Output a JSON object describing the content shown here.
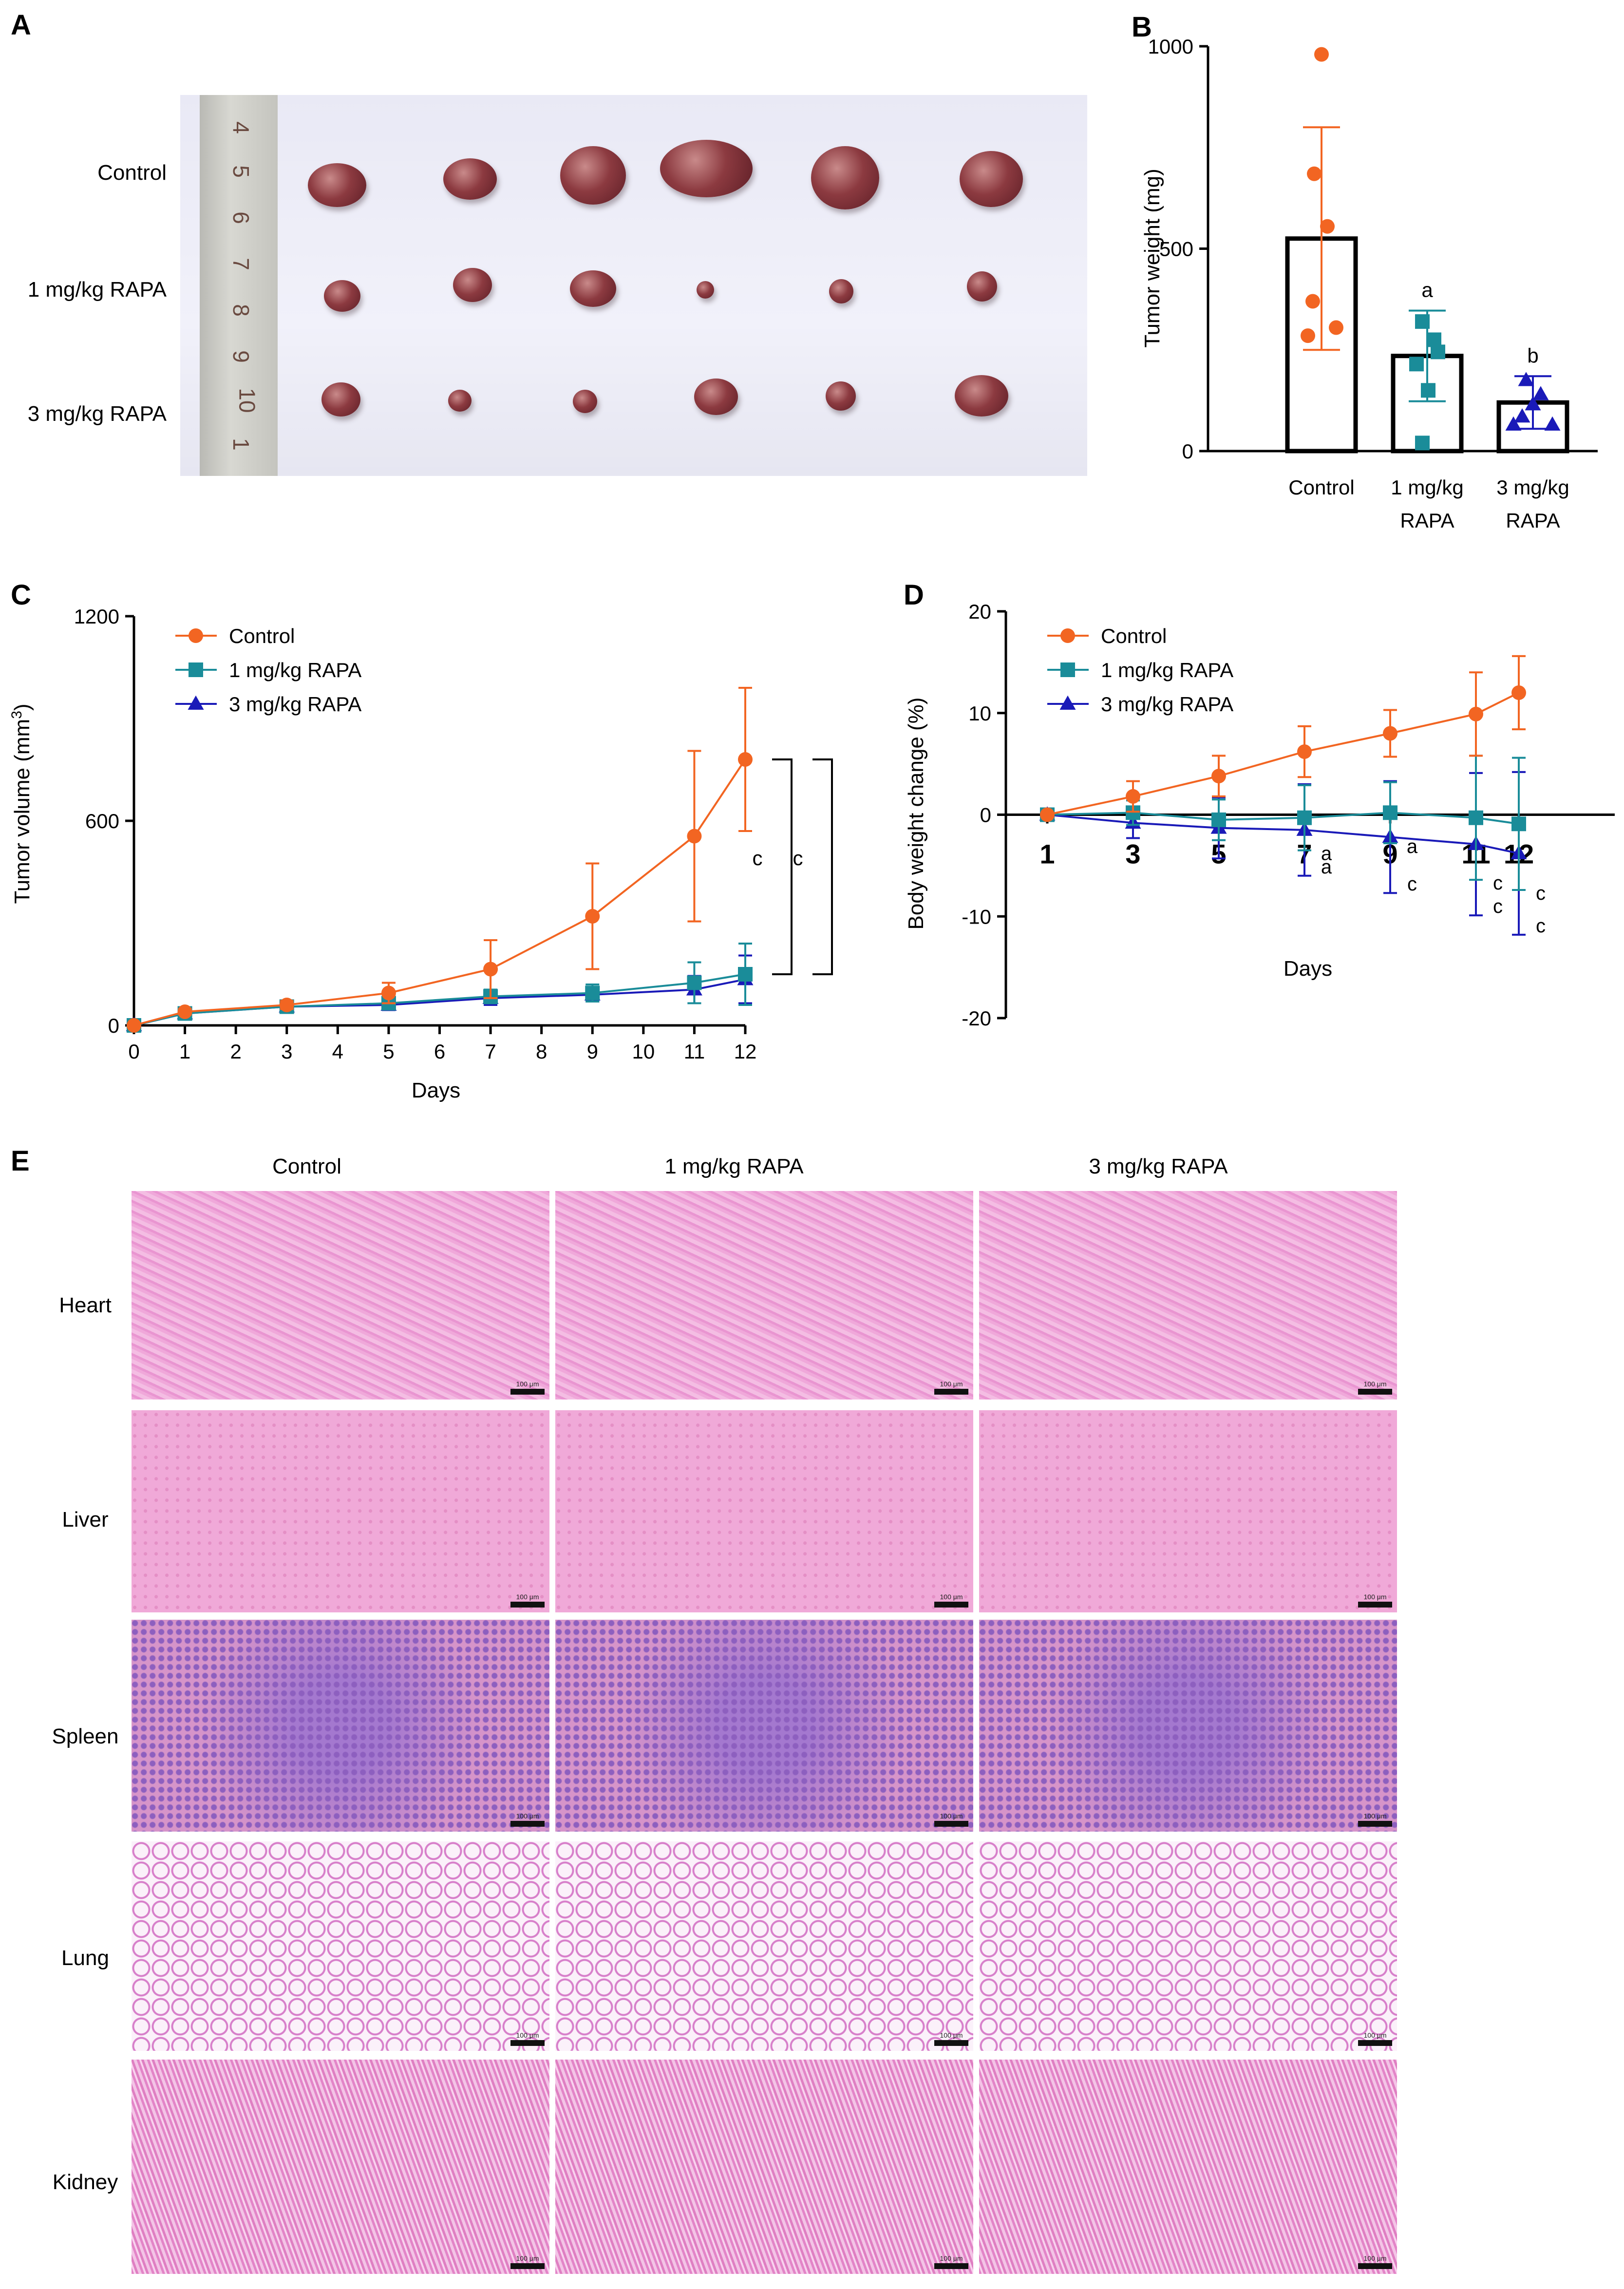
{
  "panel_letters": [
    "A",
    "B",
    "C",
    "D",
    "E"
  ],
  "panel_a": {
    "row_labels": [
      "Control",
      "1 mg/kg RAPA",
      "3 mg/kg RAPA"
    ],
    "ruler_numbers": [
      "4",
      "5",
      "6",
      "7",
      "8",
      "9",
      "10",
      "1"
    ]
  },
  "panel_e": {
    "columns": [
      "Control",
      "1 mg/kg RAPA",
      "3 mg/kg RAPA"
    ],
    "rows": [
      "Heart",
      "Liver",
      "Spleen",
      "Lung",
      "Kidney"
    ],
    "scale_bar_label": "100 μm"
  },
  "chart_data": [
    {
      "panel": "B",
      "type": "bar",
      "ylabel": "Tumor weight (mg)",
      "ylim": [
        0,
        1000
      ],
      "yticks": [
        0,
        500,
        1000
      ],
      "categories": [
        "Control",
        "1 mg/kg RAPA",
        "3 mg/kg RAPA"
      ],
      "category_lines": [
        [
          "Control"
        ],
        [
          "1 mg/kg",
          "RAPA"
        ],
        [
          "3 mg/kg",
          "RAPA"
        ]
      ],
      "values": [
        525,
        235,
        120
      ],
      "error": [
        275,
        112,
        65
      ],
      "points": [
        [
          980,
          685,
          555,
          370,
          305,
          285
        ],
        [
          320,
          275,
          245,
          215,
          150,
          20
        ],
        [
          175,
          140,
          115,
          85,
          65,
          65
        ]
      ],
      "annotations": [
        "",
        "a",
        "b"
      ],
      "colors": [
        "#f26522",
        "#1a8c99",
        "#1a1ab8"
      ],
      "markers": [
        "circle",
        "square",
        "triangle"
      ]
    },
    {
      "panel": "C",
      "type": "line",
      "xlabel": "Days",
      "ylabel": "Tumor volume (mm³)",
      "xlim": [
        0,
        12
      ],
      "ylim": [
        0,
        1200
      ],
      "xticks": [
        0,
        1,
        2,
        3,
        4,
        5,
        6,
        7,
        8,
        9,
        10,
        11,
        12
      ],
      "yticks": [
        0,
        600,
        1200
      ],
      "legend": "top-left",
      "series": [
        {
          "name": "Control",
          "color": "#f26522",
          "marker": "circle",
          "x": [
            0,
            1,
            3,
            5,
            7,
            9,
            11,
            12
          ],
          "y": [
            0,
            40,
            60,
            95,
            165,
            320,
            555,
            780
          ],
          "err": [
            0,
            8,
            12,
            30,
            85,
            155,
            250,
            210
          ]
        },
        {
          "name": "1 mg/kg RAPA",
          "color": "#1a8c99",
          "marker": "square",
          "x": [
            0,
            1,
            3,
            5,
            7,
            9,
            11,
            12
          ],
          "y": [
            0,
            35,
            55,
            65,
            85,
            95,
            125,
            150
          ],
          "err": [
            0,
            6,
            10,
            15,
            20,
            25,
            60,
            90
          ]
        },
        {
          "name": "3 mg/kg RAPA",
          "color": "#1a1ab8",
          "marker": "triangle",
          "x": [
            0,
            1,
            3,
            5,
            7,
            9,
            11,
            12
          ],
          "y": [
            0,
            35,
            55,
            60,
            80,
            90,
            105,
            135
          ],
          "err": [
            0,
            6,
            10,
            15,
            20,
            20,
            40,
            70
          ]
        }
      ],
      "significance": [
        "c",
        "c"
      ]
    },
    {
      "panel": "D",
      "type": "line",
      "xlabel": "Days",
      "ylabel": "Body weight change (%)",
      "ylim": [
        -20,
        20
      ],
      "yticks": [
        -20,
        -10,
        0,
        10,
        20
      ],
      "xticks": [
        1,
        3,
        5,
        7,
        9,
        11,
        12
      ],
      "legend": "top-left",
      "series": [
        {
          "name": "Control",
          "color": "#f26522",
          "marker": "circle",
          "x": [
            1,
            3,
            5,
            7,
            9,
            11,
            12
          ],
          "y": [
            0,
            1.8,
            3.8,
            6.2,
            8.0,
            9.9,
            12.0
          ],
          "err": [
            0,
            1.5,
            2.0,
            2.5,
            2.3,
            4.1,
            3.6
          ]
        },
        {
          "name": "1 mg/kg RAPA",
          "color": "#1a8c99",
          "marker": "square",
          "x": [
            1,
            3,
            5,
            7,
            9,
            11,
            12
          ],
          "y": [
            0,
            0.2,
            -0.5,
            -0.3,
            0.2,
            -0.3,
            -0.9
          ],
          "err": [
            0,
            1.2,
            2.0,
            3.2,
            3.0,
            6.1,
            6.5
          ]
        },
        {
          "name": "3 mg/kg RAPA",
          "color": "#1a1ab8",
          "marker": "triangle",
          "x": [
            1,
            3,
            5,
            7,
            9,
            11,
            12
          ],
          "y": [
            0,
            -0.8,
            -1.3,
            -1.5,
            -2.2,
            -2.9,
            -3.8
          ],
          "err": [
            0,
            1.5,
            3.0,
            4.5,
            5.5,
            7.0,
            8.0
          ]
        }
      ],
      "significance": [
        {
          "x": 7,
          "teal": "a",
          "blue": "a"
        },
        {
          "x": 9,
          "teal": "a",
          "blue": "c"
        },
        {
          "x": 11,
          "teal": "c",
          "blue": "c"
        },
        {
          "x": 12,
          "teal": "c",
          "blue": "c"
        }
      ]
    }
  ]
}
